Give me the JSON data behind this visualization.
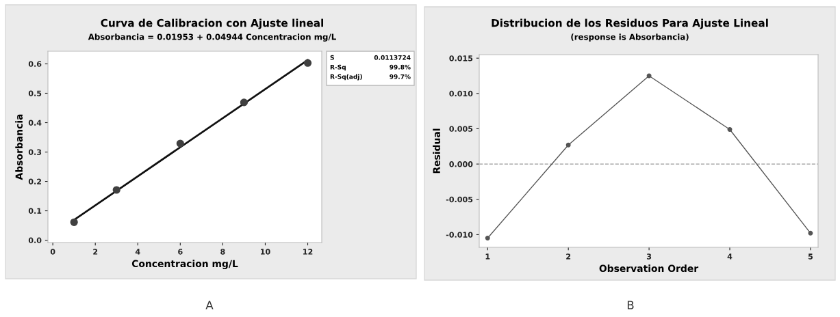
{
  "chart_data": [
    {
      "type": "scatter",
      "title": "Curva de Calibracion con Ajuste lineal",
      "subtitle": "Absorbancia = 0.01953 + 0.04944 Concentracion mg/L",
      "xlabel": "Concentracion mg/L",
      "ylabel": "Absorbancia",
      "x": [
        1,
        3,
        6,
        9,
        12
      ],
      "series": [
        {
          "color": "#404040",
          "marker": "circle",
          "values": [
            0.061,
            0.171,
            0.329,
            0.469,
            0.603
          ]
        },
        {
          "type": "line",
          "color": "#111111",
          "marker": "none",
          "x": [
            1,
            12
          ],
          "values": [
            0.069,
            0.613
          ]
        }
      ],
      "xlim": [
        -0.23,
        12.66
      ],
      "xticks": [
        0,
        2,
        4,
        6,
        8,
        10,
        12
      ],
      "ylim": [
        -0.008,
        0.643
      ],
      "yticks": [
        {
          "value": 0,
          "label": "0.0"
        },
        0.1,
        0.2,
        0.3,
        0.4,
        0.5,
        0.6
      ],
      "grid": false,
      "legend": false,
      "annotations": [
        "S",
        "0.0113724",
        "R-Sq",
        "99.8%",
        "R-Sq(adj)",
        "99.7%",
        "A"
      ]
    },
    {
      "type": "line",
      "title": "Distribucion de los Residuos Para Ajuste Lineal",
      "subtitle": "(response is Absorbancia)",
      "xlabel": "Observation Order",
      "ylabel": "Residual",
      "x": [
        1,
        2,
        3,
        4,
        5
      ],
      "series": [
        {
          "color": "#555555",
          "marker": "circle",
          "values": [
            -0.0105,
            0.0027,
            0.0125,
            0.0049,
            -0.0098
          ]
        }
      ],
      "xlim": [
        0.896,
        5.094
      ],
      "xticks": [
        1,
        2,
        3,
        4,
        5
      ],
      "ylim": [
        -0.0118,
        0.0155
      ],
      "yticks": [
        {
          "value": -0.01,
          "label": "-0.010"
        },
        {
          "value": -0.005,
          "label": "-0.005"
        },
        {
          "value": 0,
          "label": "0.000"
        },
        {
          "value": 0.005,
          "label": "0.005"
        },
        {
          "value": 0.01,
          "label": "0.010"
        },
        {
          "value": 0.015,
          "label": "0.015"
        }
      ],
      "ref_lines": [
        {
          "axis": "y",
          "value": 0,
          "color": "#999999",
          "line_style": "dashed"
        }
      ],
      "grid": false,
      "legend": false,
      "annotations": [
        "B"
      ]
    }
  ]
}
